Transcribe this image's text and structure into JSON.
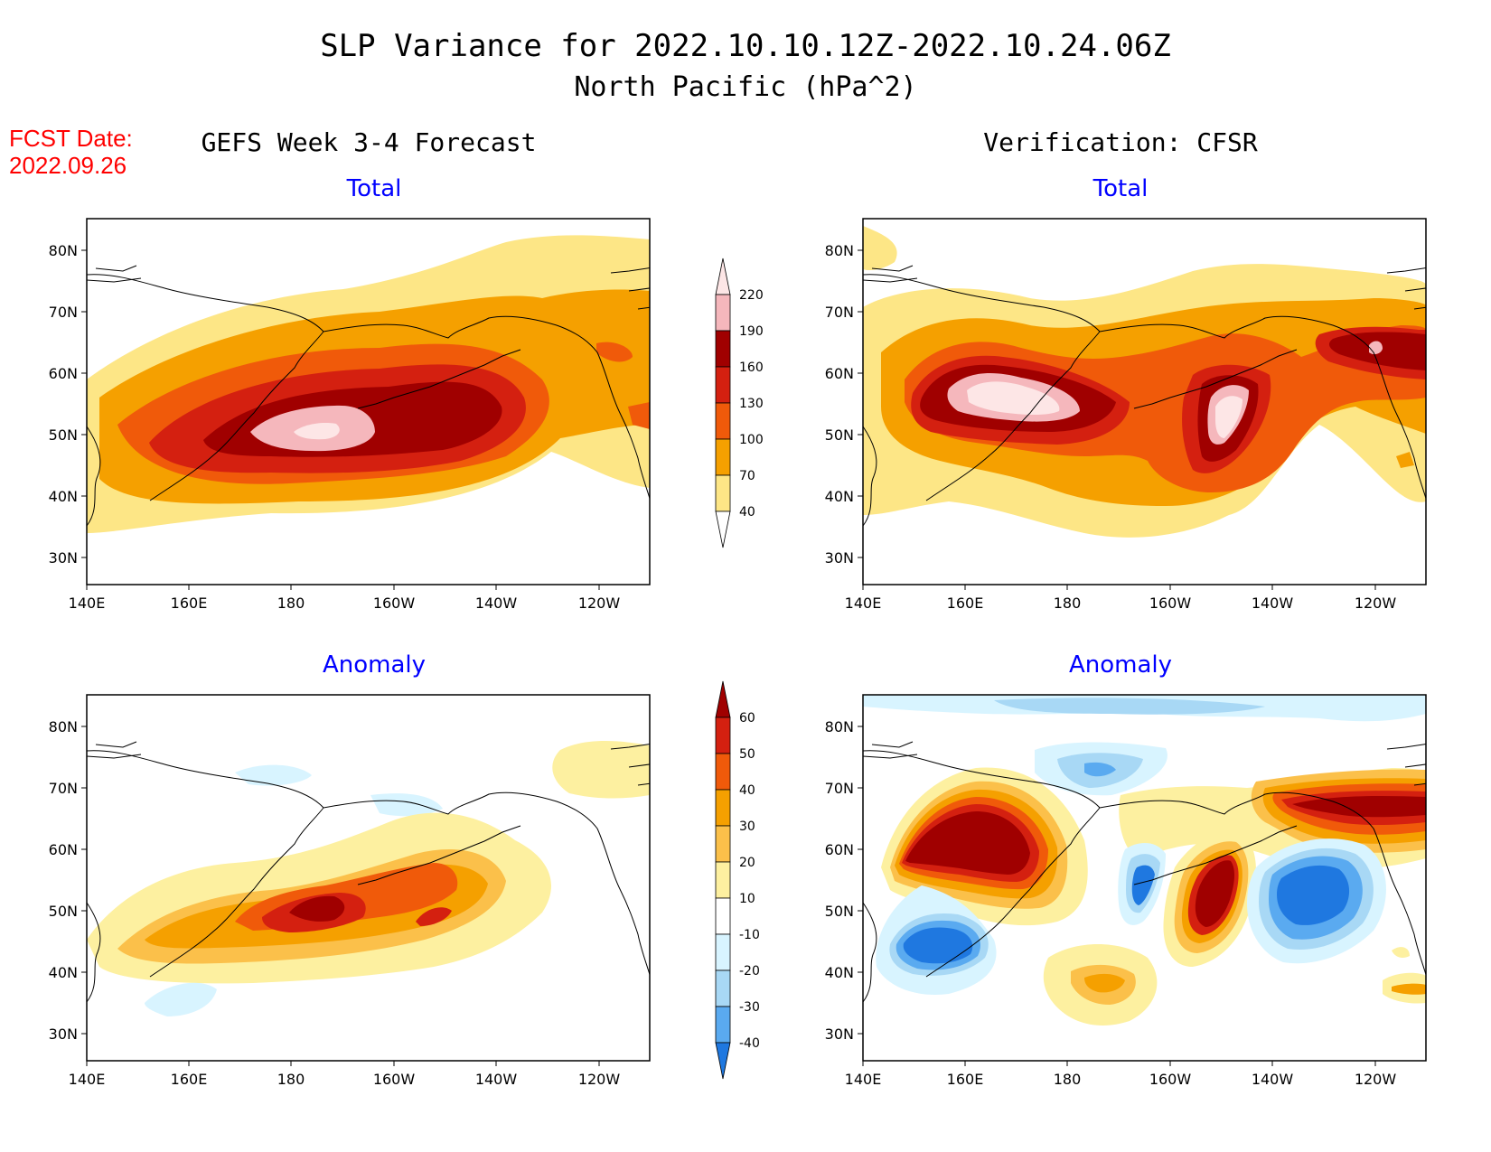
{
  "title": {
    "line1": "SLP Variance for 2022.10.10.12Z-2022.10.24.06Z",
    "line2": "North Pacific (hPa^2)"
  },
  "fcst": {
    "label": "FCST Date:",
    "date": "2022.09.26"
  },
  "column_titles": {
    "left": "GEFS Week 3-4 Forecast",
    "right": "Verification: CFSR"
  },
  "panel_titles": {
    "total": "Total",
    "anomaly": "Anomaly"
  },
  "lat_labels": [
    "80N",
    "70N",
    "60N",
    "50N",
    "40N",
    "30N"
  ],
  "lon_labels": [
    "140E",
    "160E",
    "180",
    "160W",
    "140W",
    "120W"
  ],
  "colorbar_total": {
    "labels": [
      "220",
      "190",
      "160",
      "130",
      "100",
      "70",
      "40"
    ],
    "colors": [
      "#f5b7bc",
      "#a00000",
      "#d42010",
      "#f05a0a",
      "#f5a000",
      "#fde686"
    ]
  },
  "colorbar_anomaly": {
    "labels": [
      "60",
      "50",
      "40",
      "30",
      "20",
      "10",
      "-10",
      "-20",
      "-30",
      "-40"
    ],
    "colors": [
      "#a00000",
      "#d42010",
      "#f05a0a",
      "#f5a000",
      "#fbc04a",
      "#fdf0a0",
      "#ffffff",
      "#d8f4ff",
      "#a8d8f5",
      "#5aaaf0",
      "#1f78e0"
    ]
  },
  "colors": {
    "title": "#000000",
    "fcst": "#ff0000",
    "panel_title": "#0000ff",
    "very_light_pink": "#fde6e6"
  }
}
